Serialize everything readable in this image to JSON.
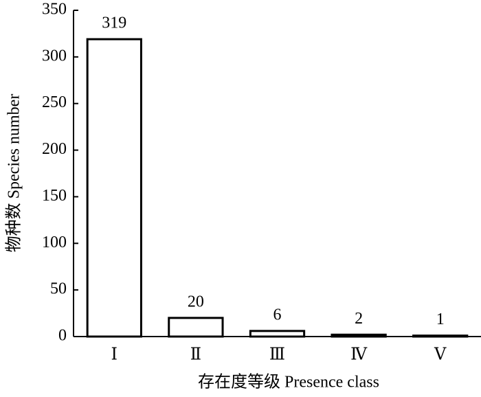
{
  "chart_data": {
    "type": "bar",
    "x_label": "存在度等级 Presence class",
    "y_label": "物种数 Species number",
    "categories": [
      "Ⅰ",
      "Ⅱ",
      "Ⅲ",
      "Ⅳ",
      "Ⅴ"
    ],
    "values": [
      319,
      20,
      6,
      2,
      1
    ],
    "color": "#ffffff",
    "ylim": [
      0,
      350
    ],
    "yticks": [
      0,
      50,
      100,
      150,
      200,
      250,
      300,
      350
    ],
    "grid": false
  }
}
